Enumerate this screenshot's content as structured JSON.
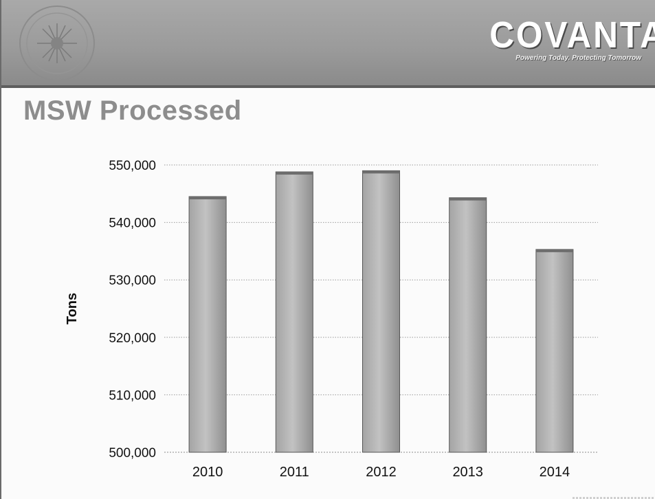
{
  "header": {
    "logo_text": "COVANTA",
    "tagline": "Powering Today. Protecting Tomorrow",
    "emblem_icon": "circular-seal-icon"
  },
  "page_title": "MSW Processed",
  "chart_data": {
    "type": "bar",
    "title": "",
    "xlabel": "",
    "ylabel": "Tons",
    "categories": [
      "2010",
      "2011",
      "2012",
      "2013",
      "2014"
    ],
    "values": [
      544500,
      548800,
      549000,
      544300,
      535300
    ],
    "ylim": [
      500000,
      550000
    ],
    "yticks": [
      500000,
      510000,
      520000,
      530000,
      540000,
      550000
    ],
    "ytick_labels": [
      "500,000",
      "510,000",
      "520,000",
      "530,000",
      "540,000",
      "550,000"
    ],
    "grid": true,
    "legend": "none",
    "bar_color": "#b8b8b8"
  }
}
